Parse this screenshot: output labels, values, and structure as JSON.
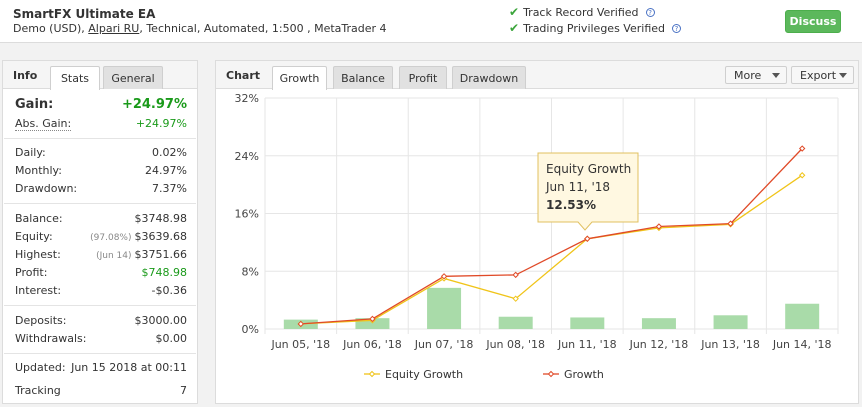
{
  "header": {
    "name": "SmartFX Ultimate EA",
    "desc_prefix": "Demo (USD),",
    "broker": "Alpari RU",
    "desc_suffix": ", Technical, Automated, 1:500 , MetaTrader 4",
    "verif1": "Track Record Verified",
    "verif2": "Trading Privileges Verified",
    "help": "?",
    "discuss": "Discuss"
  },
  "info": {
    "title": "Info",
    "tabs": [
      "Stats",
      "General"
    ],
    "gain_label": "Gain:",
    "gain_value": "+24.97%",
    "abs_label": "Abs. Gain:",
    "abs_value": "+24.97%",
    "daily_label": "Daily:",
    "daily_value": "0.02%",
    "monthly_label": "Monthly:",
    "monthly_value": "24.97%",
    "drawdown_label": "Drawdown:",
    "drawdown_value": "7.37%",
    "balance_label": "Balance:",
    "balance_value": "$3748.98",
    "equity_label": "Equity:",
    "equity_sub": "(97.08%)",
    "equity_value": "$3639.68",
    "highest_label": "Highest:",
    "highest_sub": "(Jun 14)",
    "highest_value": "$3751.66",
    "profit_label": "Profit:",
    "profit_value": "$748.98",
    "interest_label": "Interest:",
    "interest_value": "-$0.36",
    "deposits_label": "Deposits:",
    "deposits_value": "$3000.00",
    "withdrawals_label": "Withdrawals:",
    "withdrawals_value": "$0.00",
    "updated_label": "Updated:",
    "updated_value": "Jun 15 2018 at 00:11",
    "tracking_label": "Tracking",
    "tracking_value": "7"
  },
  "chart_panel": {
    "title": "Chart",
    "tabs": [
      "Growth",
      "Balance",
      "Profit",
      "Drawdown"
    ],
    "more": "More",
    "export": "Export"
  },
  "tooltip": {
    "series": "Equity Growth",
    "date": "Jun 11, '18",
    "value": "12.53%"
  },
  "chart_data": {
    "type": "line",
    "categories": [
      "Jun 05, '18",
      "Jun 06, '18",
      "Jun 07, '18",
      "Jun 08, '18",
      "Jun 11, '18",
      "Jun 12, '18",
      "Jun 13, '18",
      "Jun 14, '18"
    ],
    "ylim": [
      0,
      32
    ],
    "yticks": [
      "0%",
      "8%",
      "16%",
      "24%",
      "32%"
    ],
    "grid": true,
    "legend_position": "bottom",
    "series": [
      {
        "name": "Equity Growth",
        "type": "line",
        "color": "#f0c419",
        "values": [
          0.7,
          1.2,
          7.0,
          4.2,
          12.5,
          14.0,
          14.5,
          21.3
        ]
      },
      {
        "name": "Growth",
        "type": "line",
        "color": "#e04a28",
        "values": [
          0.7,
          1.4,
          7.3,
          7.5,
          12.5,
          14.2,
          14.6,
          25.0
        ]
      }
    ],
    "bars": {
      "color": "#a9dba9",
      "values": [
        1.3,
        1.5,
        5.7,
        1.7,
        1.6,
        1.5,
        1.9,
        3.5
      ]
    }
  }
}
